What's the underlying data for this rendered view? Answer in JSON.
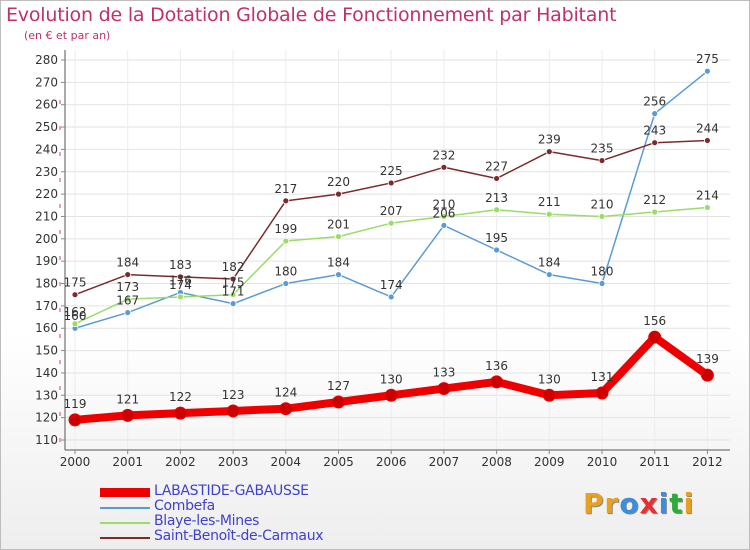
{
  "title": "Evolution de la Dotation Globale de Fonctionnement par Habitant",
  "subtitle": "(en € et par an)",
  "logo": {
    "text": "Proxiti",
    "letters": [
      "P",
      "r",
      "o",
      "x",
      "i",
      "t",
      "i"
    ],
    "colors": [
      "#e8a020",
      "#e8a020",
      "#3a8fd8",
      "#e83030",
      "#3a8fd8",
      "#2faa3a",
      "#e8a020"
    ]
  },
  "chart_data": {
    "type": "line",
    "title": "Evolution de la Dotation Globale de Fonctionnement par Habitant",
    "ylabel": "(en € et par an)",
    "xlabel": "",
    "categories": [
      "2000",
      "2001",
      "2002",
      "2003",
      "2004",
      "2005",
      "2006",
      "2007",
      "2008",
      "2009",
      "2010",
      "2011",
      "2012"
    ],
    "ylim": [
      110,
      280
    ],
    "yticks": [
      110,
      120,
      130,
      140,
      150,
      160,
      170,
      180,
      190,
      200,
      210,
      220,
      230,
      240,
      250,
      260,
      270,
      280
    ],
    "grid": true,
    "legend_position": "bottom-left",
    "series": [
      {
        "name": "LABASTIDE-GABAUSSE",
        "color": "#ee0000",
        "bold": true,
        "values": [
          119,
          121,
          122,
          123,
          124,
          127,
          130,
          133,
          136,
          130,
          131,
          156,
          139
        ]
      },
      {
        "name": "Combefa",
        "color": "#5b9bd5",
        "bold": false,
        "values": [
          160,
          167,
          176,
          171,
          180,
          184,
          174,
          206,
          195,
          184,
          180,
          256,
          275
        ]
      },
      {
        "name": "Blaye-les-Mines",
        "color": "#99dd66",
        "bold": false,
        "values": [
          162,
          173,
          174,
          175,
          199,
          201,
          207,
          210,
          213,
          211,
          210,
          212,
          214
        ]
      },
      {
        "name": "Saint-Benoît-de-Carmaux",
        "color": "#7a2c2c",
        "bold": false,
        "values": [
          175,
          184,
          183,
          182,
          217,
          220,
          225,
          232,
          227,
          239,
          235,
          243,
          244
        ]
      }
    ]
  }
}
